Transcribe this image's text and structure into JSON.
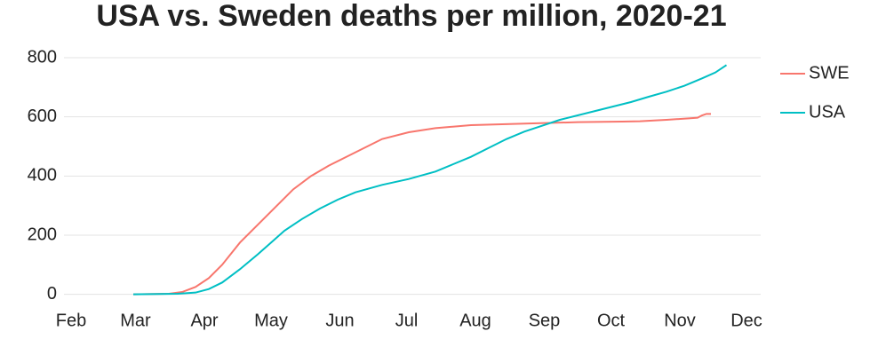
{
  "chart_data": {
    "type": "line",
    "title": "USA vs. Sweden deaths per million, 2020-21",
    "xlim": [
      0,
      304
    ],
    "xticks": [
      {
        "value": 0,
        "label": "Feb"
      },
      {
        "value": 29,
        "label": "Mar"
      },
      {
        "value": 60,
        "label": "Apr"
      },
      {
        "value": 90,
        "label": "May"
      },
      {
        "value": 121,
        "label": "Jun"
      },
      {
        "value": 151,
        "label": "Jul"
      },
      {
        "value": 182,
        "label": "Aug"
      },
      {
        "value": 213,
        "label": "Sep"
      },
      {
        "value": 243,
        "label": "Oct"
      },
      {
        "value": 274,
        "label": "Nov"
      },
      {
        "value": 304,
        "label": "Dec"
      }
    ],
    "ylim": [
      -40,
      860
    ],
    "yticks": [
      0,
      200,
      400,
      600,
      800
    ],
    "grid": true,
    "series": [
      {
        "name": "SWE",
        "color": "#f8766d",
        "x": [
          28,
          44,
          50,
          56,
          62,
          68,
          76,
          84,
          92,
          100,
          108,
          116,
          124,
          132,
          140,
          152,
          164,
          180,
          208,
          228,
          248,
          256,
          268,
          278,
          282,
          284,
          286,
          288
        ],
        "values": [
          0,
          2,
          8,
          25,
          55,
          100,
          175,
          235,
          295,
          355,
          400,
          435,
          465,
          495,
          525,
          548,
          562,
          572,
          578,
          582,
          584,
          585,
          590,
          595,
          597,
          605,
          610,
          610
        ]
      },
      {
        "name": "USA",
        "color": "#00bfc4",
        "x": [
          28,
          48,
          56,
          62,
          68,
          76,
          84,
          90,
          96,
          104,
          112,
          120,
          128,
          140,
          152,
          164,
          172,
          180,
          188,
          196,
          204,
          212,
          220,
          228,
          236,
          244,
          252,
          260,
          268,
          276,
          284,
          290,
          295
        ],
        "values": [
          0,
          2,
          6,
          18,
          40,
          85,
          135,
          175,
          215,
          255,
          290,
          320,
          345,
          370,
          390,
          415,
          440,
          465,
          495,
          525,
          550,
          570,
          590,
          605,
          620,
          635,
          650,
          668,
          685,
          705,
          730,
          750,
          775
        ]
      }
    ]
  }
}
